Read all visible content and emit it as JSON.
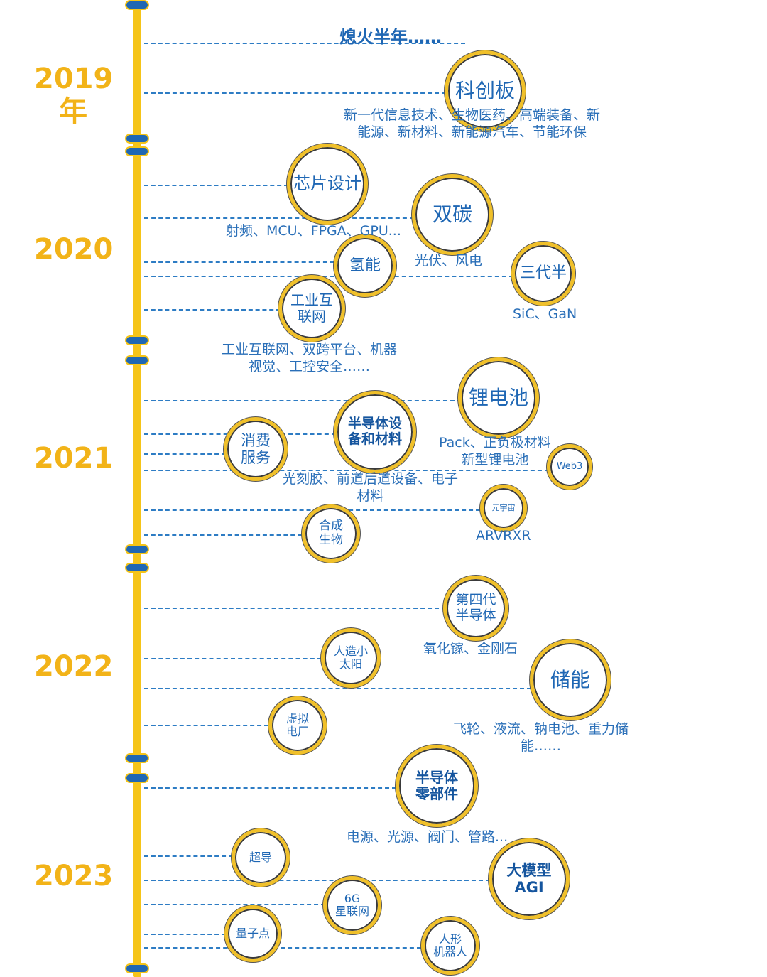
{
  "header": {
    "title": "熄火半年……"
  },
  "years": [
    "2019\n年",
    "2020",
    "2021",
    "2022",
    "2023"
  ],
  "nodes": {
    "kechuangban": "科创板",
    "xinpian": "芯片设计",
    "shuangtan": "双碳",
    "qingneng": "氢能",
    "sandaiban": "三代半",
    "gongye": "工业互\n联网",
    "lidianchi": "锂电池",
    "bandaoti_shebei": "半导体设\n备和材料",
    "xiaofei": "消费\n服务",
    "web3": "Web3",
    "yuanyuzhou": "元宇宙",
    "hecheng": "合成\n生物",
    "disidai": "第四代\n半导体",
    "renzao": "人造小\n太阳",
    "chuneng": "储能",
    "xuni": "虚拟\n电厂",
    "lingbujian": "半导体\n零部件",
    "chaodao": "超导",
    "damoxing": "大模型\nAGI",
    "xinglian": "6G\n星联网",
    "liangzidian": "量子点",
    "renxing": "人形\n机器人"
  },
  "descriptions": {
    "kechuangban": "新一代信息技术、生物医药、高端装备、新\n能源、新材料、新能源汽车、节能环保",
    "xinpian": "射频、MCU、FPGA、GPU...",
    "shuangtan": "光伏、风电",
    "sandaiban": "SiC、GaN",
    "gongye": "工业互联网、双跨平台、机器\n视觉、工控安全……",
    "lidianchi": "Pack、正负极材料\n新型锂电池",
    "bandaoti_shebei": "光刻胶、前道后道设备、电子\n材料",
    "yuanyuzhou": "ARVRXR",
    "disidai": "氧化镓、金刚石",
    "chuneng": "飞轮、液流、钠电池、重力储\n能……",
    "lingbujian": "电源、光源、阀门、管路..."
  },
  "colors": {
    "spine": "#f5c418",
    "joint": "#1f67b4",
    "year": "#f2b318",
    "line": "#2d7cc4",
    "ring": "#f0c02a",
    "text": "#1f67b4"
  }
}
